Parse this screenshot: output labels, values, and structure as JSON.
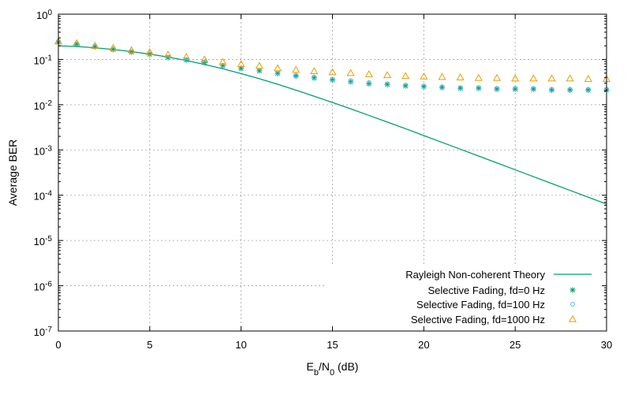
{
  "chart_data": {
    "type": "line",
    "xlabel": {
      "main": "E",
      "sub1": "b",
      "mid": "/N",
      "sub2": "0",
      "tail": " (dB)"
    },
    "ylabel": "Average BER",
    "xlim": [
      0,
      30
    ],
    "ylim": [
      1e-07,
      1
    ],
    "yscale": "log",
    "grid": true,
    "legend_position": "bottom-right",
    "x_ticks": [
      "0",
      "5",
      "10",
      "15",
      "20",
      "25",
      "30"
    ],
    "y_ticks": [
      {
        "base": "10",
        "exp": "0"
      },
      {
        "base": "10",
        "exp": "-1"
      },
      {
        "base": "10",
        "exp": "-2"
      },
      {
        "base": "10",
        "exp": "-3"
      },
      {
        "base": "10",
        "exp": "-4"
      },
      {
        "base": "10",
        "exp": "-5"
      },
      {
        "base": "10",
        "exp": "-6"
      },
      {
        "base": "10",
        "exp": "-7"
      }
    ],
    "series": [
      {
        "name": "Rayleigh Non-coherent Theory",
        "style": "line",
        "color": "#009e73",
        "x": [
          0,
          1,
          2,
          3,
          4,
          5,
          6,
          7,
          8,
          9,
          10,
          11,
          12,
          13,
          14,
          15,
          16,
          17,
          18,
          19,
          20,
          21,
          22,
          23,
          24,
          25,
          26,
          27,
          28,
          29,
          30
        ],
        "values": [
          0.2,
          0.193,
          0.181,
          0.166,
          0.149,
          0.131,
          0.113,
          0.0949,
          0.0777,
          0.0622,
          0.0488,
          0.0375,
          0.0283,
          0.021,
          0.0154,
          0.0112,
          0.00809,
          0.0058,
          0.00414,
          0.00295,
          0.00208,
          0.00147,
          0.00104,
          0.000733,
          0.000517,
          0.000365,
          0.000257,
          0.000181,
          0.000128,
          9.03e-05,
          6.37e-05
        ]
      },
      {
        "name": "Selective Fading, fd=0 Hz",
        "style": "marker-star",
        "color": "#009e73",
        "x": [
          0,
          1,
          2,
          3,
          4,
          5,
          6,
          7,
          8,
          9,
          10,
          11,
          12,
          13,
          14,
          15,
          16,
          17,
          18,
          19,
          20,
          21,
          22,
          23,
          24,
          25,
          26,
          27,
          28,
          29,
          30
        ],
        "values": [
          0.24,
          0.215,
          0.19,
          0.165,
          0.145,
          0.13,
          0.11,
          0.097,
          0.085,
          0.072,
          0.063,
          0.056,
          0.049,
          0.043,
          0.039,
          0.035,
          0.032,
          0.029,
          0.028,
          0.026,
          0.025,
          0.024,
          0.023,
          0.023,
          0.022,
          0.022,
          0.022,
          0.021,
          0.021,
          0.021,
          0.021
        ]
      },
      {
        "name": "Selective Fading, fd=100 Hz",
        "style": "marker-circle",
        "color": "#56b4e9",
        "x": [
          0,
          1,
          2,
          3,
          4,
          5,
          6,
          7,
          8,
          9,
          10,
          11,
          12,
          13,
          14,
          15,
          16,
          17,
          18,
          19,
          20,
          21,
          22,
          23,
          24,
          25,
          26,
          27,
          28,
          29,
          30
        ],
        "values": [
          0.245,
          0.22,
          0.195,
          0.17,
          0.15,
          0.133,
          0.113,
          0.1,
          0.088,
          0.075,
          0.065,
          0.058,
          0.051,
          0.045,
          0.041,
          0.037,
          0.034,
          0.031,
          0.029,
          0.027,
          0.026,
          0.025,
          0.024,
          0.024,
          0.023,
          0.023,
          0.023,
          0.022,
          0.022,
          0.022,
          0.022
        ]
      },
      {
        "name": "Selective Fading, fd=1000 Hz",
        "style": "marker-triangle",
        "color": "#e69f00",
        "x": [
          0,
          1,
          2,
          3,
          4,
          5,
          6,
          7,
          8,
          9,
          10,
          11,
          12,
          13,
          14,
          15,
          16,
          17,
          18,
          19,
          20,
          21,
          22,
          23,
          24,
          25,
          26,
          27,
          28,
          29,
          30
        ],
        "values": [
          0.25,
          0.23,
          0.2,
          0.18,
          0.16,
          0.145,
          0.128,
          0.113,
          0.1,
          0.088,
          0.079,
          0.072,
          0.064,
          0.059,
          0.055,
          0.052,
          0.05,
          0.047,
          0.045,
          0.043,
          0.042,
          0.041,
          0.04,
          0.039,
          0.039,
          0.038,
          0.038,
          0.038,
          0.038,
          0.037,
          0.037
        ]
      }
    ]
  }
}
